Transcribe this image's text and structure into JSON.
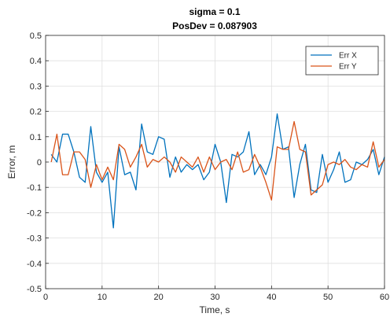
{
  "chart_data": {
    "type": "line",
    "title": "sigma = 0.1",
    "subtitle": "PosDev = 0.087903",
    "xlabel": "Time, s",
    "ylabel": "Error, m",
    "xlim": [
      0,
      60
    ],
    "ylim": [
      -0.5,
      0.5
    ],
    "xticks": [
      0,
      10,
      20,
      30,
      40,
      50,
      60
    ],
    "yticks": [
      -0.5,
      -0.4,
      -0.3,
      -0.2,
      -0.1,
      0,
      0.1,
      0.2,
      0.3,
      0.4,
      0.5
    ],
    "xtick_labels": [
      "0",
      "10",
      "20",
      "30",
      "40",
      "50",
      "60"
    ],
    "ytick_labels": [
      "-0.5",
      "-0.4",
      "-0.3",
      "-0.2",
      "-0.1",
      "0",
      "0.1",
      "0.2",
      "0.3",
      "0.4",
      "0.5"
    ],
    "grid": true,
    "legend": "top-right",
    "x": [
      1,
      2,
      3,
      4,
      5,
      6,
      7,
      8,
      9,
      10,
      11,
      12,
      13,
      14,
      15,
      16,
      17,
      18,
      19,
      20,
      21,
      22,
      23,
      24,
      25,
      26,
      27,
      28,
      29,
      30,
      31,
      32,
      33,
      34,
      35,
      36,
      37,
      38,
      39,
      40,
      41,
      42,
      43,
      44,
      45,
      46,
      47,
      48,
      49,
      50,
      51,
      52,
      53,
      54,
      55,
      56,
      57,
      58,
      59,
      60
    ],
    "series": [
      {
        "name": "Err X",
        "color": "#0072bd",
        "values": [
          0.03,
          0.0,
          0.11,
          0.11,
          0.04,
          -0.06,
          -0.08,
          0.14,
          -0.04,
          -0.08,
          -0.04,
          -0.26,
          0.06,
          -0.05,
          -0.04,
          -0.11,
          0.15,
          0.04,
          0.03,
          0.1,
          0.09,
          -0.06,
          0.02,
          -0.04,
          -0.01,
          -0.03,
          -0.01,
          -0.07,
          -0.04,
          0.07,
          0.0,
          -0.16,
          0.03,
          0.02,
          0.04,
          0.12,
          -0.05,
          -0.01,
          -0.05,
          0.02,
          0.19,
          0.05,
          0.06,
          -0.14,
          -0.01,
          0.07,
          -0.11,
          -0.12,
          0.03,
          -0.08,
          -0.03,
          0.04,
          -0.08,
          -0.07,
          0.0,
          -0.01,
          0.01,
          0.05,
          -0.05,
          0.02
        ]
      },
      {
        "name": "Err Y",
        "color": "#d95319",
        "values": [
          0.0,
          0.11,
          -0.05,
          -0.05,
          0.04,
          0.04,
          0.01,
          -0.1,
          -0.01,
          -0.07,
          -0.02,
          -0.07,
          0.07,
          0.05,
          -0.02,
          0.02,
          0.07,
          -0.02,
          0.01,
          0.0,
          0.02,
          0.0,
          -0.04,
          0.02,
          0.0,
          -0.02,
          0.02,
          -0.04,
          0.02,
          -0.03,
          0.0,
          0.01,
          -0.03,
          0.04,
          -0.04,
          -0.03,
          0.03,
          -0.02,
          -0.08,
          -0.15,
          0.06,
          0.05,
          0.05,
          0.16,
          0.05,
          0.04,
          -0.13,
          -0.11,
          -0.09,
          -0.01,
          0.0,
          -0.01,
          0.01,
          -0.02,
          -0.03,
          -0.01,
          -0.02,
          0.08,
          -0.02,
          0.01
        ]
      }
    ]
  }
}
